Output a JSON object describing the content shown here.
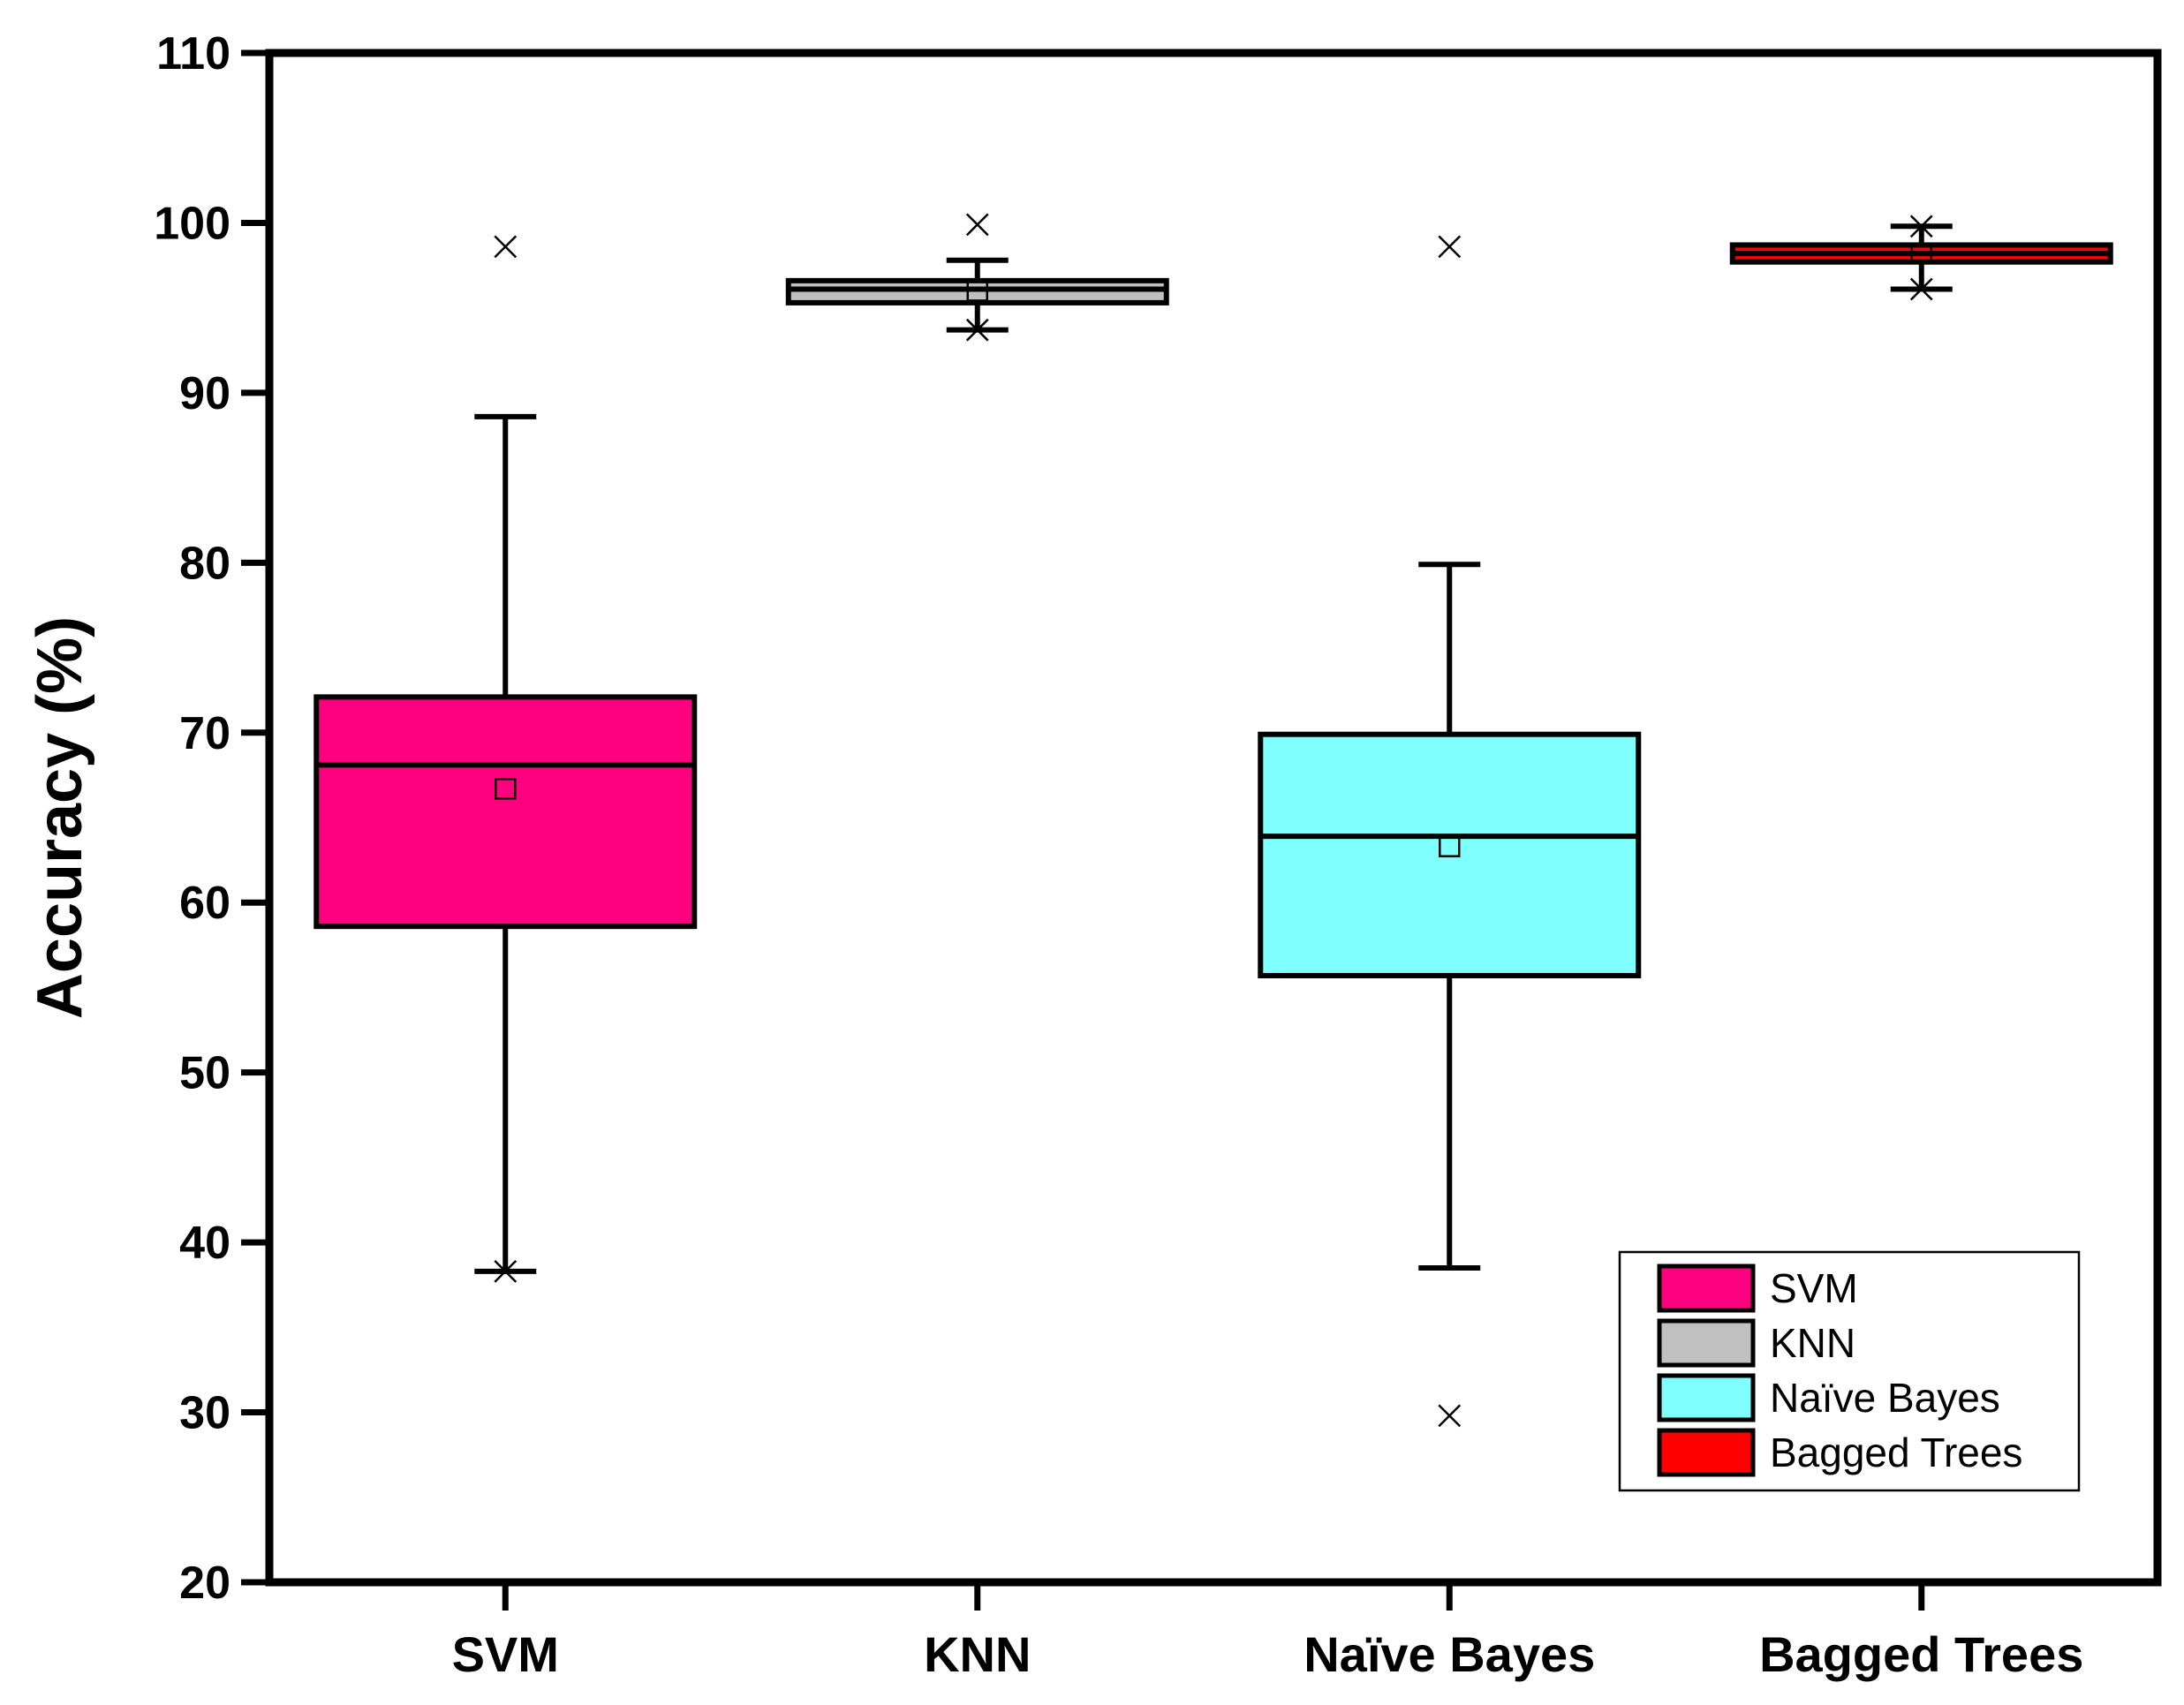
{
  "chart_data": {
    "type": "box",
    "title": "",
    "xlabel": "",
    "ylabel": "Accuracy (%)",
    "ylim": [
      20,
      110
    ],
    "yticks": [
      20,
      30,
      40,
      50,
      60,
      70,
      80,
      90,
      100,
      110
    ],
    "grid": false,
    "legend_position": "bottom-right",
    "categories": [
      "SVM",
      "KNN",
      "Naïve Bayes",
      "Bagged Trees"
    ],
    "series": [
      {
        "name": "SVM",
        "color": "#FF007F",
        "whisker_low": 38.3,
        "q1": 58.6,
        "median": 68.1,
        "q3": 72.1,
        "whisker_high": 88.6,
        "mean": 66.7,
        "extremes": [
          38.3,
          98.6
        ]
      },
      {
        "name": "KNN",
        "color": "#C0C0C0",
        "whisker_low": 93.7,
        "q1": 95.3,
        "median": 96.1,
        "q3": 96.6,
        "whisker_high": 97.8,
        "mean": 96.0,
        "extremes": [
          93.7,
          99.9
        ]
      },
      {
        "name": "Naïve Bayes",
        "color": "#80FFFF",
        "whisker_low": 38.5,
        "q1": 55.7,
        "median": 63.9,
        "q3": 69.9,
        "whisker_high": 79.9,
        "mean": 63.3,
        "extremes": [
          29.8,
          98.6
        ]
      },
      {
        "name": "Bagged Trees",
        "color": "#FF0000",
        "whisker_low": 96.1,
        "q1": 97.7,
        "median": 98.2,
        "q3": 98.7,
        "whisker_high": 99.8,
        "mean": 98.2,
        "extremes": [
          96.1,
          99.8
        ]
      }
    ]
  }
}
